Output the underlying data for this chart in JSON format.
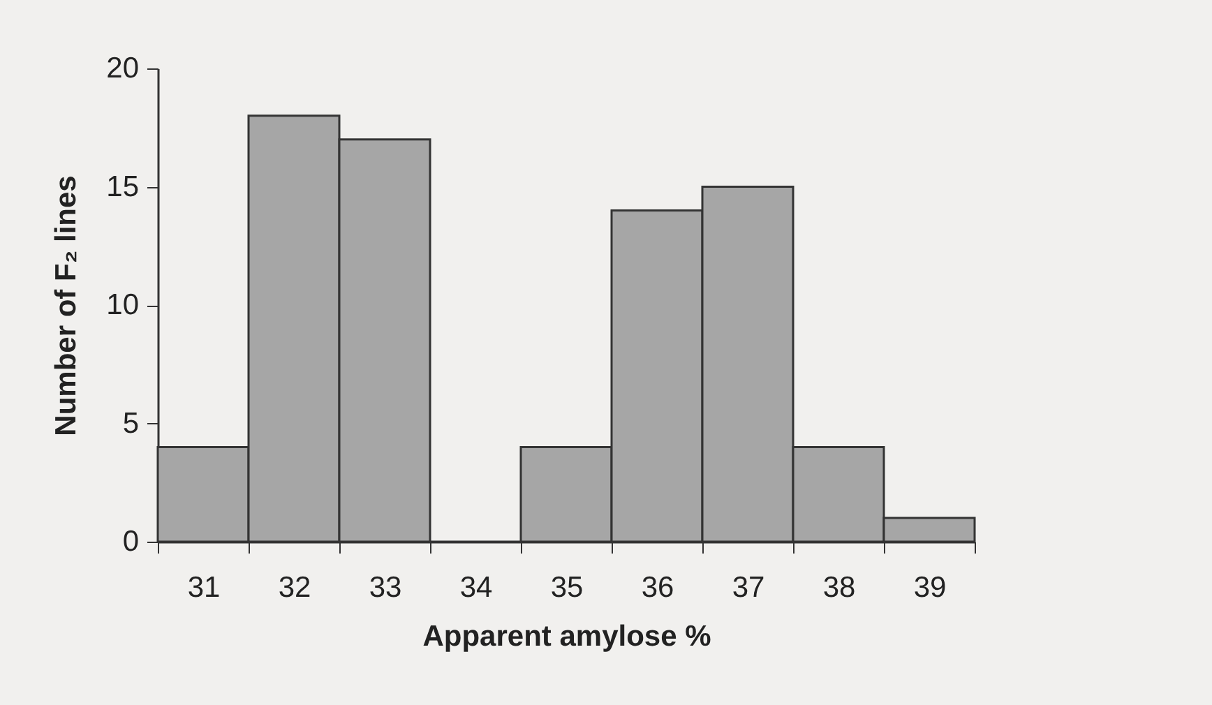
{
  "chart_data": {
    "type": "bar",
    "xlabel": "Apparent amylose %",
    "ylabel": "Number of F₂ lines",
    "categories": [
      "31",
      "32",
      "33",
      "34",
      "35",
      "36",
      "37",
      "38",
      "39"
    ],
    "values": [
      4,
      18,
      17,
      0,
      4,
      14,
      15,
      4,
      1
    ],
    "color": "#a6a6a6",
    "ylim": [
      0,
      20
    ],
    "yticks": [
      0,
      5,
      10,
      15,
      20
    ],
    "grid": false
  }
}
